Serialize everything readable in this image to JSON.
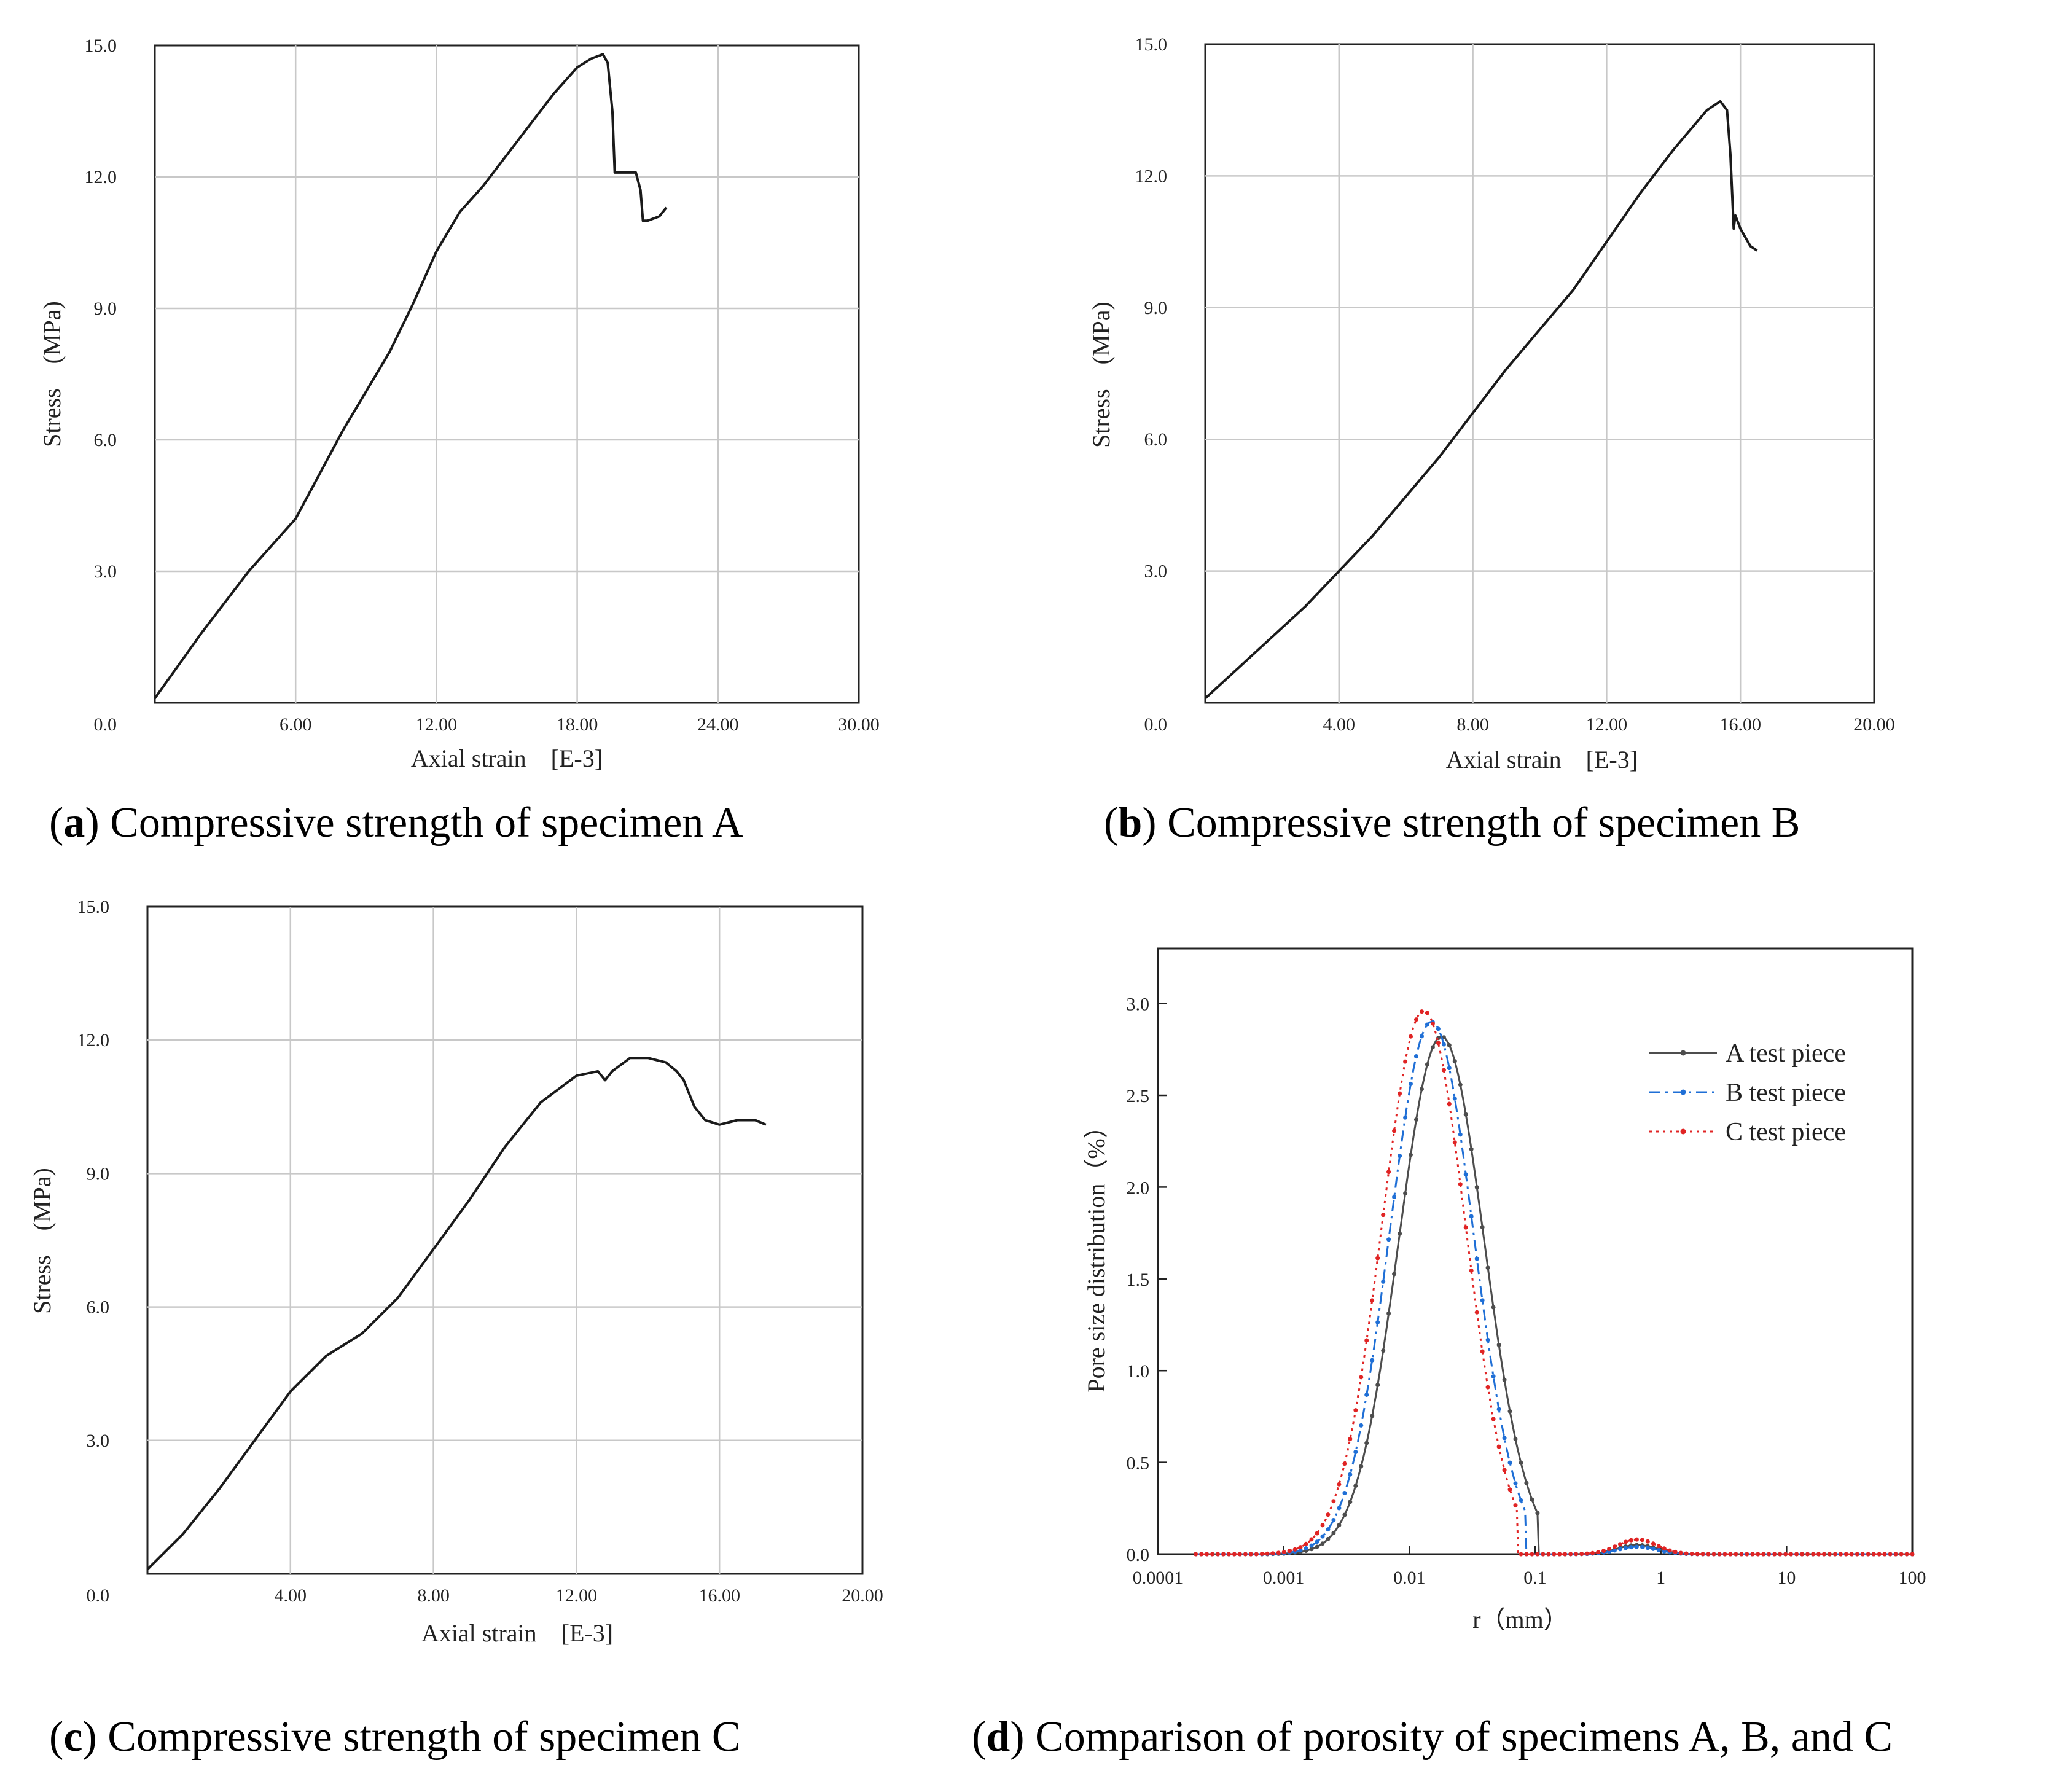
{
  "chart_data": [
    {
      "id": "a",
      "type": "line",
      "caption_letter": "a",
      "caption_text": "Compressive strength of specimen A",
      "xlabel": "Axial strain [E-3]",
      "ylabel": "Stress (MPa)",
      "xlim": [
        0,
        30
      ],
      "ylim": [
        0,
        15
      ],
      "xticks": [
        6,
        12,
        18,
        24,
        30
      ],
      "xtick_labels": [
        "6.00",
        "12.00",
        "18.00",
        "24.00",
        "30.00"
      ],
      "yticks": [
        3,
        6,
        9,
        12,
        15
      ],
      "ytick_labels": [
        "3.0",
        "6.0",
        "9.0",
        "12.0",
        "15.0"
      ],
      "origin_label": "0.0",
      "grid": true,
      "series": [
        {
          "name": "A",
          "color": "#1a1a1a",
          "x": [
            0,
            2,
            4,
            5,
            6,
            7,
            8,
            9,
            10,
            11,
            12,
            13,
            14,
            15,
            16,
            17,
            18,
            18.6,
            19.1,
            19.3,
            19.5,
            19.6,
            19.7,
            20.5,
            20.7,
            20.8,
            21,
            21.5,
            21.8
          ],
          "y": [
            0.1,
            1.6,
            3.0,
            3.6,
            4.2,
            5.2,
            6.2,
            7.1,
            8.0,
            9.1,
            10.3,
            11.2,
            11.8,
            12.5,
            13.2,
            13.9,
            14.5,
            14.7,
            14.8,
            14.6,
            13.5,
            12.1,
            12.1,
            12.1,
            11.7,
            11.0,
            11.0,
            11.1,
            11.3
          ]
        }
      ]
    },
    {
      "id": "b",
      "type": "line",
      "caption_letter": "b",
      "caption_text": "Compressive strength of specimen B",
      "xlabel": "Axial strain [E-3]",
      "ylabel": "Stress (MPa)",
      "xlim": [
        0,
        20
      ],
      "ylim": [
        0,
        15
      ],
      "xticks": [
        4,
        8,
        12,
        16,
        20
      ],
      "xtick_labels": [
        "4.00",
        "8.00",
        "12.00",
        "16.00",
        "20.00"
      ],
      "yticks": [
        3,
        6,
        9,
        12,
        15
      ],
      "ytick_labels": [
        "3.0",
        "6.0",
        "9.0",
        "12.0",
        "15.0"
      ],
      "origin_label": "0.0",
      "grid": true,
      "series": [
        {
          "name": "B",
          "color": "#1a1a1a",
          "x": [
            0,
            1,
            2,
            3,
            4,
            5,
            6,
            7,
            8,
            9,
            10,
            11,
            12,
            13,
            14,
            15,
            15.4,
            15.6,
            15.7,
            15.8,
            15.85,
            16,
            16.3,
            16.5
          ],
          "y": [
            0.1,
            0.8,
            1.5,
            2.2,
            3.0,
            3.8,
            4.7,
            5.6,
            6.6,
            7.6,
            8.5,
            9.4,
            10.5,
            11.6,
            12.6,
            13.5,
            13.7,
            13.5,
            12.5,
            10.8,
            11.1,
            10.8,
            10.4,
            10.3
          ]
        }
      ]
    },
    {
      "id": "c",
      "type": "line",
      "caption_letter": "c",
      "caption_text": "Compressive strength of specimen C",
      "xlabel": "Axial strain [E-3]",
      "ylabel": "Stress (MPa)",
      "xlim": [
        0,
        20
      ],
      "ylim": [
        0,
        15
      ],
      "xticks": [
        4,
        8,
        12,
        16,
        20
      ],
      "xtick_labels": [
        "4.00",
        "8.00",
        "12.00",
        "16.00",
        "20.00"
      ],
      "yticks": [
        3,
        6,
        9,
        12,
        15
      ],
      "ytick_labels": [
        "3.0",
        "6.0",
        "9.0",
        "12.0",
        "15.0"
      ],
      "origin_label": "0.0",
      "grid": true,
      "series": [
        {
          "name": "C",
          "color": "#1a1a1a",
          "x": [
            0,
            1,
            2,
            3,
            4,
            5,
            6,
            7,
            8,
            9,
            10,
            11,
            12,
            12.6,
            12.8,
            13,
            13.5,
            14,
            14.5,
            14.8,
            15,
            15.3,
            15.6,
            16,
            16.5,
            17,
            17.3
          ],
          "y": [
            0.1,
            0.9,
            1.9,
            3.0,
            4.1,
            4.9,
            5.4,
            6.2,
            7.3,
            8.4,
            9.6,
            10.6,
            11.2,
            11.3,
            11.1,
            11.3,
            11.6,
            11.6,
            11.5,
            11.3,
            11.1,
            10.5,
            10.2,
            10.1,
            10.2,
            10.2,
            10.1
          ]
        }
      ]
    },
    {
      "id": "d",
      "type": "line",
      "caption_letter": "d",
      "caption_text": "Comparison of porosity of specimens A, B, and C",
      "xlabel": "r（mm）",
      "ylabel": "Pore size distribution（%）",
      "xscale": "log",
      "xlim": [
        0.0001,
        100
      ],
      "ylim": [
        0,
        3.3
      ],
      "xticks": [
        0.0001,
        0.001,
        0.01,
        0.1,
        1,
        10,
        100
      ],
      "xtick_labels": [
        "0.0001",
        "0.001",
        "0.01",
        "0.1",
        "1",
        "10",
        "100"
      ],
      "yticks": [
        0,
        0.5,
        1.0,
        1.5,
        2.0,
        2.5,
        3.0
      ],
      "ytick_labels": [
        "0.0",
        "0.5",
        "1.0",
        "1.5",
        "2.0",
        "2.5",
        "3.0"
      ],
      "grid": false,
      "legend_position": "top-right",
      "series": [
        {
          "name": "A test piece",
          "color": "#4d4d4d",
          "dash": "solid",
          "peak_r": 0.018,
          "peak_value": 2.82,
          "width_decades": 0.48,
          "cutoff_r": [
            0.00075,
            0.105
          ],
          "secondary_peak_r": 0.65,
          "secondary_peak_value": 0.05
        },
        {
          "name": "B test piece",
          "color": "#1f6fd6",
          "dash": "dashdot",
          "peak_r": 0.015,
          "peak_value": 2.9,
          "width_decades": 0.47,
          "cutoff_r": [
            0.0007,
            0.085
          ],
          "secondary_peak_r": 0.65,
          "secondary_peak_value": 0.04
        },
        {
          "name": "C test piece",
          "color": "#e02424",
          "dash": "dotted",
          "peak_r": 0.013,
          "peak_value": 2.96,
          "width_decades": 0.47,
          "cutoff_r": [
            0.00065,
            0.072
          ],
          "secondary_peak_r": 0.65,
          "secondary_peak_value": 0.08
        }
      ]
    }
  ]
}
